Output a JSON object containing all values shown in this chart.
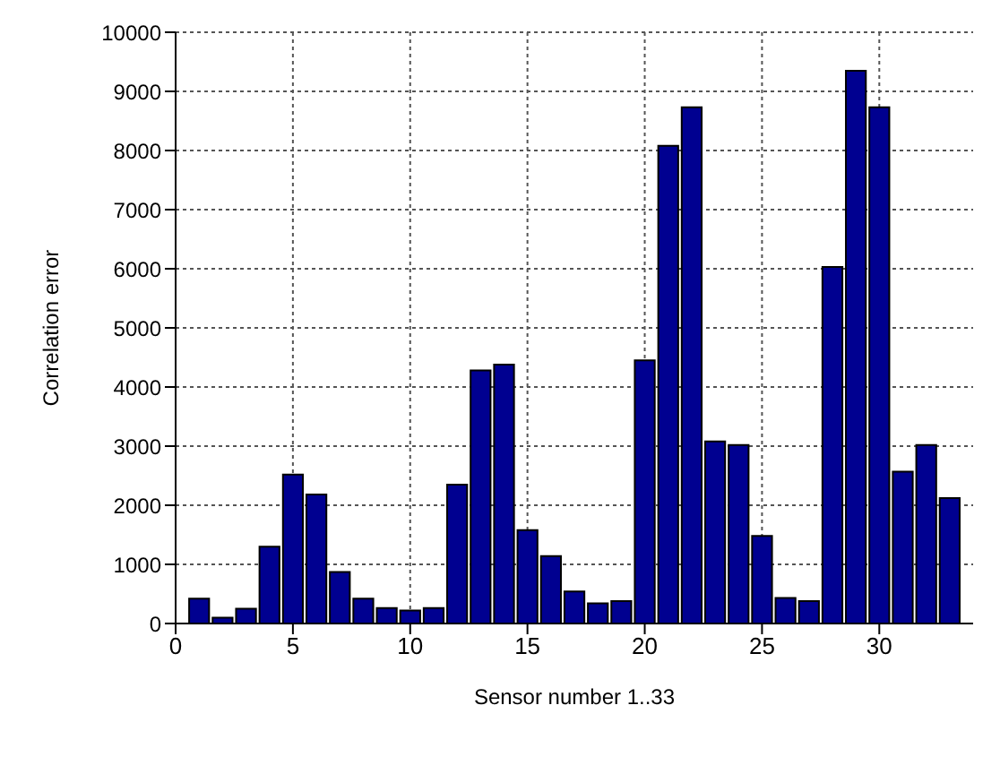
{
  "chart_data": {
    "type": "bar",
    "xlabel": "Sensor number 1..33",
    "ylabel": "Correlation error",
    "x": [
      1,
      2,
      3,
      4,
      5,
      6,
      7,
      8,
      9,
      10,
      11,
      12,
      13,
      14,
      15,
      16,
      17,
      18,
      19,
      20,
      21,
      22,
      23,
      24,
      25,
      26,
      27,
      28,
      29,
      30,
      31,
      32,
      33
    ],
    "values": [
      420,
      100,
      250,
      1300,
      2520,
      2180,
      870,
      420,
      260,
      220,
      260,
      2350,
      4280,
      4380,
      1580,
      1140,
      540,
      340,
      380,
      4450,
      8080,
      8730,
      3080,
      3020,
      1480,
      430,
      380,
      6030,
      9350,
      8730,
      2570,
      3020,
      2120
    ],
    "color": "#000090",
    "xlim": [
      0,
      34
    ],
    "xticks": [
      0,
      5,
      10,
      15,
      20,
      25,
      30
    ],
    "ylim": [
      0,
      10000
    ],
    "yticks": [
      0,
      1000,
      2000,
      3000,
      4000,
      5000,
      6000,
      7000,
      8000,
      9000,
      10000
    ],
    "grid": true
  }
}
